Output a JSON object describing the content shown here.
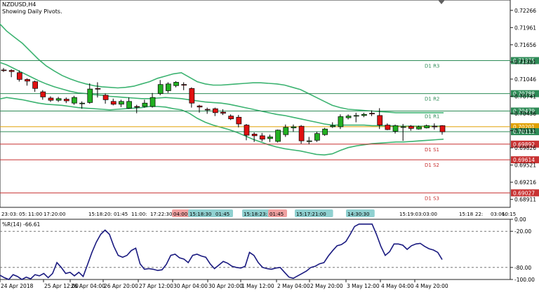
{
  "header": {
    "symbol_line": "NZDUSD,H4",
    "indicator_line": "Showing Daily Pivots."
  },
  "colors": {
    "background": "#ffffff",
    "bull_candle": "#22b022",
    "bear_candle": "#e01010",
    "bollinger": "#3cb371",
    "pivot_line": "#2e8b57",
    "support_line": "#c83232",
    "current_price_line": "#e0a000",
    "indicator_line": "#1a1a80",
    "label_bg_pivot": "#2e8b57",
    "label_bg_support": "#c83232",
    "label_bg_current": "#e0a000",
    "session_box_blue": "#8fd0d0",
    "session_box_red": "#f0a0a0"
  },
  "chart_data": [
    {
      "type": "candlestick",
      "title": "NZDUSD,H4",
      "subtitle": "Showing Daily Pivots.",
      "ylim": [
        0.6877,
        0.7245
      ],
      "y_ticks": [
        "0.72266",
        "0.71961",
        "0.71656",
        "0.71351",
        "0.71046",
        "0.70741",
        "0.70436",
        "0.70131",
        "0.69826",
        "0.69521",
        "0.69216",
        "0.68911"
      ],
      "candles": [
        {
          "o": 0.71208,
          "h": 0.71242,
          "l": 0.71173,
          "c": 0.712
        },
        {
          "o": 0.712,
          "h": 0.7122,
          "l": 0.7108,
          "c": 0.7118
        },
        {
          "o": 0.7116,
          "h": 0.71201,
          "l": 0.71002,
          "c": 0.7104
        },
        {
          "o": 0.7104,
          "h": 0.7106,
          "l": 0.7093,
          "c": 0.7101
        },
        {
          "o": 0.71,
          "h": 0.7102,
          "l": 0.7082,
          "c": 0.7088
        },
        {
          "o": 0.7082,
          "h": 0.7085,
          "l": 0.7068,
          "c": 0.7073
        },
        {
          "o": 0.7071,
          "h": 0.7074,
          "l": 0.7064,
          "c": 0.7067
        },
        {
          "o": 0.7067,
          "h": 0.7073,
          "l": 0.7064,
          "c": 0.707
        },
        {
          "o": 0.7069,
          "h": 0.7072,
          "l": 0.7062,
          "c": 0.7066
        },
        {
          "o": 0.7062,
          "h": 0.7075,
          "l": 0.7059,
          "c": 0.7072
        },
        {
          "o": 0.7061,
          "h": 0.7065,
          "l": 0.7052,
          "c": 0.7062
        },
        {
          "o": 0.7063,
          "h": 0.7097,
          "l": 0.7061,
          "c": 0.7087
        },
        {
          "o": 0.7088,
          "h": 0.7099,
          "l": 0.7072,
          "c": 0.7087
        },
        {
          "o": 0.7076,
          "h": 0.7079,
          "l": 0.7061,
          "c": 0.7068
        },
        {
          "o": 0.7065,
          "h": 0.707,
          "l": 0.7058,
          "c": 0.706
        },
        {
          "o": 0.706,
          "h": 0.7068,
          "l": 0.7055,
          "c": 0.7065
        },
        {
          "o": 0.7053,
          "h": 0.7072,
          "l": 0.7052,
          "c": 0.7065
        },
        {
          "o": 0.7056,
          "h": 0.7059,
          "l": 0.7044,
          "c": 0.7055
        },
        {
          "o": 0.7056,
          "h": 0.7068,
          "l": 0.7054,
          "c": 0.7062
        },
        {
          "o": 0.7056,
          "h": 0.708,
          "l": 0.7054,
          "c": 0.7072
        },
        {
          "o": 0.7079,
          "h": 0.7103,
          "l": 0.7076,
          "c": 0.7095
        },
        {
          "o": 0.7084,
          "h": 0.7099,
          "l": 0.708,
          "c": 0.7096
        },
        {
          "o": 0.7093,
          "h": 0.7101,
          "l": 0.709,
          "c": 0.7099
        },
        {
          "o": 0.7095,
          "h": 0.7099,
          "l": 0.7085,
          "c": 0.7094
        },
        {
          "o": 0.7088,
          "h": 0.709,
          "l": 0.7054,
          "c": 0.7062
        },
        {
          "o": 0.7057,
          "h": 0.7059,
          "l": 0.7045,
          "c": 0.7055
        },
        {
          "o": 0.7051,
          "h": 0.7054,
          "l": 0.7043,
          "c": 0.705
        },
        {
          "o": 0.7052,
          "h": 0.7054,
          "l": 0.7039,
          "c": 0.7045
        },
        {
          "o": 0.7046,
          "h": 0.7051,
          "l": 0.7041,
          "c": 0.7044
        },
        {
          "o": 0.7039,
          "h": 0.7042,
          "l": 0.7032,
          "c": 0.7034
        },
        {
          "o": 0.7037,
          "h": 0.7041,
          "l": 0.7019,
          "c": 0.7025
        },
        {
          "o": 0.7023,
          "h": 0.7025,
          "l": 0.6996,
          "c": 0.7005
        },
        {
          "o": 0.7007,
          "h": 0.701,
          "l": 0.6993,
          "c": 0.7004
        },
        {
          "o": 0.7004,
          "h": 0.7009,
          "l": 0.6994,
          "c": 0.6998
        },
        {
          "o": 0.6999,
          "h": 0.7006,
          "l": 0.6993,
          "c": 0.7002
        },
        {
          "o": 0.6994,
          "h": 0.7015,
          "l": 0.6992,
          "c": 0.7014
        },
        {
          "o": 0.7006,
          "h": 0.7024,
          "l": 0.7002,
          "c": 0.7019
        },
        {
          "o": 0.7018,
          "h": 0.7024,
          "l": 0.7011,
          "c": 0.702
        },
        {
          "o": 0.7021,
          "h": 0.7023,
          "l": 0.699,
          "c": 0.6995
        },
        {
          "o": 0.6994,
          "h": 0.7002,
          "l": 0.6989,
          "c": 0.6995
        },
        {
          "o": 0.6996,
          "h": 0.7011,
          "l": 0.6993,
          "c": 0.7008
        },
        {
          "o": 0.7006,
          "h": 0.7018,
          "l": 0.7004,
          "c": 0.7016
        },
        {
          "o": 0.702,
          "h": 0.7028,
          "l": 0.7018,
          "c": 0.7022
        },
        {
          "o": 0.702,
          "h": 0.7042,
          "l": 0.7016,
          "c": 0.7038
        },
        {
          "o": 0.7036,
          "h": 0.7042,
          "l": 0.7033,
          "c": 0.7039
        },
        {
          "o": 0.7039,
          "h": 0.7045,
          "l": 0.7028,
          "c": 0.704
        },
        {
          "o": 0.704,
          "h": 0.7045,
          "l": 0.7037,
          "c": 0.7042
        },
        {
          "o": 0.7044,
          "h": 0.7049,
          "l": 0.7039,
          "c": 0.7043
        },
        {
          "o": 0.704,
          "h": 0.7053,
          "l": 0.7016,
          "c": 0.7023
        },
        {
          "o": 0.7023,
          "h": 0.7026,
          "l": 0.7014,
          "c": 0.7015
        },
        {
          "o": 0.7012,
          "h": 0.7024,
          "l": 0.7008,
          "c": 0.7022
        },
        {
          "o": 0.702,
          "h": 0.7025,
          "l": 0.6995,
          "c": 0.702
        },
        {
          "o": 0.7021,
          "h": 0.7023,
          "l": 0.7013,
          "c": 0.7017
        },
        {
          "o": 0.7016,
          "h": 0.7022,
          "l": 0.7015,
          "c": 0.702
        },
        {
          "o": 0.7018,
          "h": 0.7024,
          "l": 0.7017,
          "c": 0.7022
        },
        {
          "o": 0.7021,
          "h": 0.7026,
          "l": 0.7015,
          "c": 0.702
        },
        {
          "o": 0.7022,
          "h": 0.7023,
          "l": 0.7006,
          "c": 0.7011
        }
      ],
      "bollinger": {
        "upper": [
          0.7205,
          0.719,
          0.7179,
          0.7168,
          0.7154,
          0.714,
          0.7128,
          0.7119,
          0.7111,
          0.7105,
          0.71,
          0.7096,
          0.7093,
          0.7091,
          0.709,
          0.7089,
          0.709,
          0.7092,
          0.7096,
          0.71,
          0.7106,
          0.711,
          0.7114,
          0.7116,
          0.7108,
          0.71,
          0.7096,
          0.7094,
          0.7094,
          0.7095,
          0.7096,
          0.7097,
          0.7098,
          0.7098,
          0.7097,
          0.7096,
          0.7094,
          0.709,
          0.7086,
          0.7079,
          0.7072,
          0.7065,
          0.7058,
          0.7054,
          0.7051,
          0.705,
          0.7049,
          0.7048,
          0.7047,
          0.7046,
          0.7045,
          0.7045,
          0.7045,
          0.7045,
          0.7045,
          0.7045,
          0.7045
        ],
        "middle": [
          0.7135,
          0.713,
          0.7123,
          0.7116,
          0.7109,
          0.7102,
          0.7096,
          0.7091,
          0.7087,
          0.7083,
          0.708,
          0.7079,
          0.7077,
          0.7076,
          0.7074,
          0.7073,
          0.7072,
          0.7071,
          0.707,
          0.707,
          0.7071,
          0.7072,
          0.7071,
          0.707,
          0.7068,
          0.7066,
          0.7064,
          0.7063,
          0.7062,
          0.706,
          0.7057,
          0.7054,
          0.7051,
          0.7048,
          0.7045,
          0.7042,
          0.704,
          0.7037,
          0.7034,
          0.7031,
          0.7028,
          0.7025,
          0.7023,
          0.7023,
          0.7023,
          0.7023,
          0.7023,
          0.7022,
          0.7022,
          0.7022,
          0.7021,
          0.7021,
          0.7021,
          0.7021,
          0.7021,
          0.7021,
          0.7021
        ],
        "lower": [
          0.7069,
          0.7072,
          0.707,
          0.7068,
          0.7065,
          0.7062,
          0.706,
          0.7059,
          0.7058,
          0.7056,
          0.7054,
          0.7053,
          0.7052,
          0.7051,
          0.705,
          0.7051,
          0.7052,
          0.7053,
          0.7054,
          0.7056,
          0.7056,
          0.7055,
          0.7052,
          0.705,
          0.7044,
          0.7035,
          0.7028,
          0.7023,
          0.7019,
          0.7015,
          0.701,
          0.7004,
          0.6998,
          0.6993,
          0.6988,
          0.6984,
          0.6981,
          0.6979,
          0.6977,
          0.6974,
          0.6971,
          0.697,
          0.6972,
          0.6978,
          0.6983,
          0.6986,
          0.6988,
          0.699,
          0.6991,
          0.6992,
          0.6993,
          0.6993,
          0.6994,
          0.6995,
          0.6996,
          0.6997,
          0.6998
        ]
      },
      "pivot_lines": [
        {
          "name": "D1 R3",
          "value": 0.71375,
          "label": "0.71375",
          "kind": "pivot"
        },
        {
          "name": "D1 R2",
          "value": 0.70788,
          "label": "0.70788",
          "kind": "pivot"
        },
        {
          "name": "D1 R1",
          "value": 0.70479,
          "label": "0.70479",
          "kind": "pivot"
        },
        {
          "name": "D1 S1",
          "value": 0.69892,
          "label": "0.69892",
          "kind": "support"
        },
        {
          "name": "D1 S2",
          "value": 0.69614,
          "label": "0.69614",
          "kind": "support"
        },
        {
          "name": "D1 S3",
          "value": 0.69027,
          "label": "0.69027",
          "kind": "support"
        }
      ],
      "price_lines": [
        {
          "value": 0.70201,
          "label": "0.70201",
          "kind": "current"
        },
        {
          "value": 0.70113,
          "label": "0.70113",
          "kind": "pivot"
        }
      ]
    },
    {
      "type": "line",
      "title": "%R(14) -66.61",
      "ylim": [
        -100,
        0
      ],
      "y_ticks": [
        "0.00",
        "-20.00",
        "-80.00",
        "-100.00"
      ],
      "levels": [
        -20,
        -80
      ],
      "series": [
        {
          "values": [
            -93,
            -97,
            -100,
            -92,
            -95,
            -100,
            -96,
            -99,
            -92,
            -94,
            -90,
            -97,
            -90,
            -72,
            -80,
            -90,
            -88,
            -94,
            -88,
            -95,
            -75,
            -55,
            -38,
            -25,
            -18,
            -25,
            -45,
            -60,
            -63,
            -60,
            -52,
            -48,
            -74,
            -83,
            -82,
            -83,
            -85,
            -84,
            -75,
            -60,
            -58,
            -64,
            -66,
            -72,
            -60,
            -58,
            -61,
            -63,
            -74,
            -82,
            -76,
            -70,
            -73,
            -78,
            -80,
            -81,
            -78,
            -55,
            -60,
            -72,
            -80,
            -82,
            -83,
            -81,
            -80,
            -88,
            -96,
            -98,
            -94,
            -90,
            -86,
            -80,
            -78,
            -74,
            -72,
            -61,
            -52,
            -44,
            -42,
            -37,
            -25,
            -12,
            -8,
            -8,
            -8,
            -8,
            -25,
            -45,
            -60,
            -54,
            -41,
            -41,
            -43,
            -50,
            -44,
            -41,
            -40,
            -45,
            -49,
            -51,
            -55,
            -67
          ]
        }
      ]
    }
  ],
  "session_labels": [
    {
      "text": "23:",
      "color": "none"
    },
    {
      "text": "03:",
      "color": "none"
    },
    {
      "text": "05:",
      "color": "none"
    },
    {
      "text": "11:00",
      "color": "none"
    },
    {
      "text": "17:20:00",
      "color": "none"
    },
    {
      "text": "15:18:20:",
      "color": "none"
    },
    {
      "text": "01:45",
      "color": "none"
    },
    {
      "text": "11:00:",
      "color": "none"
    },
    {
      "text": "17:22:30",
      "color": "none"
    },
    {
      "text": "04:00",
      "color": "red"
    },
    {
      "text": "15:18:30",
      "color": "blue"
    },
    {
      "text": "01:45",
      "color": "blue"
    },
    {
      "text": "15:18:23:",
      "color": "blue"
    },
    {
      "text": "01:45",
      "color": "red"
    },
    {
      "text": "15:17:21:00",
      "color": "blue"
    },
    {
      "text": "14:30:30",
      "color": "blue"
    },
    {
      "text": "15:19:03:03:00",
      "color": "none"
    },
    {
      "text": "15:18",
      "color": "none"
    },
    {
      "text": "22:",
      "color": "none"
    },
    {
      "text": "03:06:",
      "color": "none"
    },
    {
      "text": "10:15",
      "color": "none"
    }
  ],
  "x_axis_labels": [
    "24 Apr 2018",
    "25 Apr 12:00",
    "26 Apr 04:00",
    "26 Apr 20:00",
    "27 Apr 12:00",
    "30 Apr 04:00",
    "30 Apr 20:00",
    "1 May 12:00",
    "2 May 04:00",
    "2 May 20:00",
    "3 May 12:00",
    "4 May 04:00",
    "4 May 20:00"
  ]
}
